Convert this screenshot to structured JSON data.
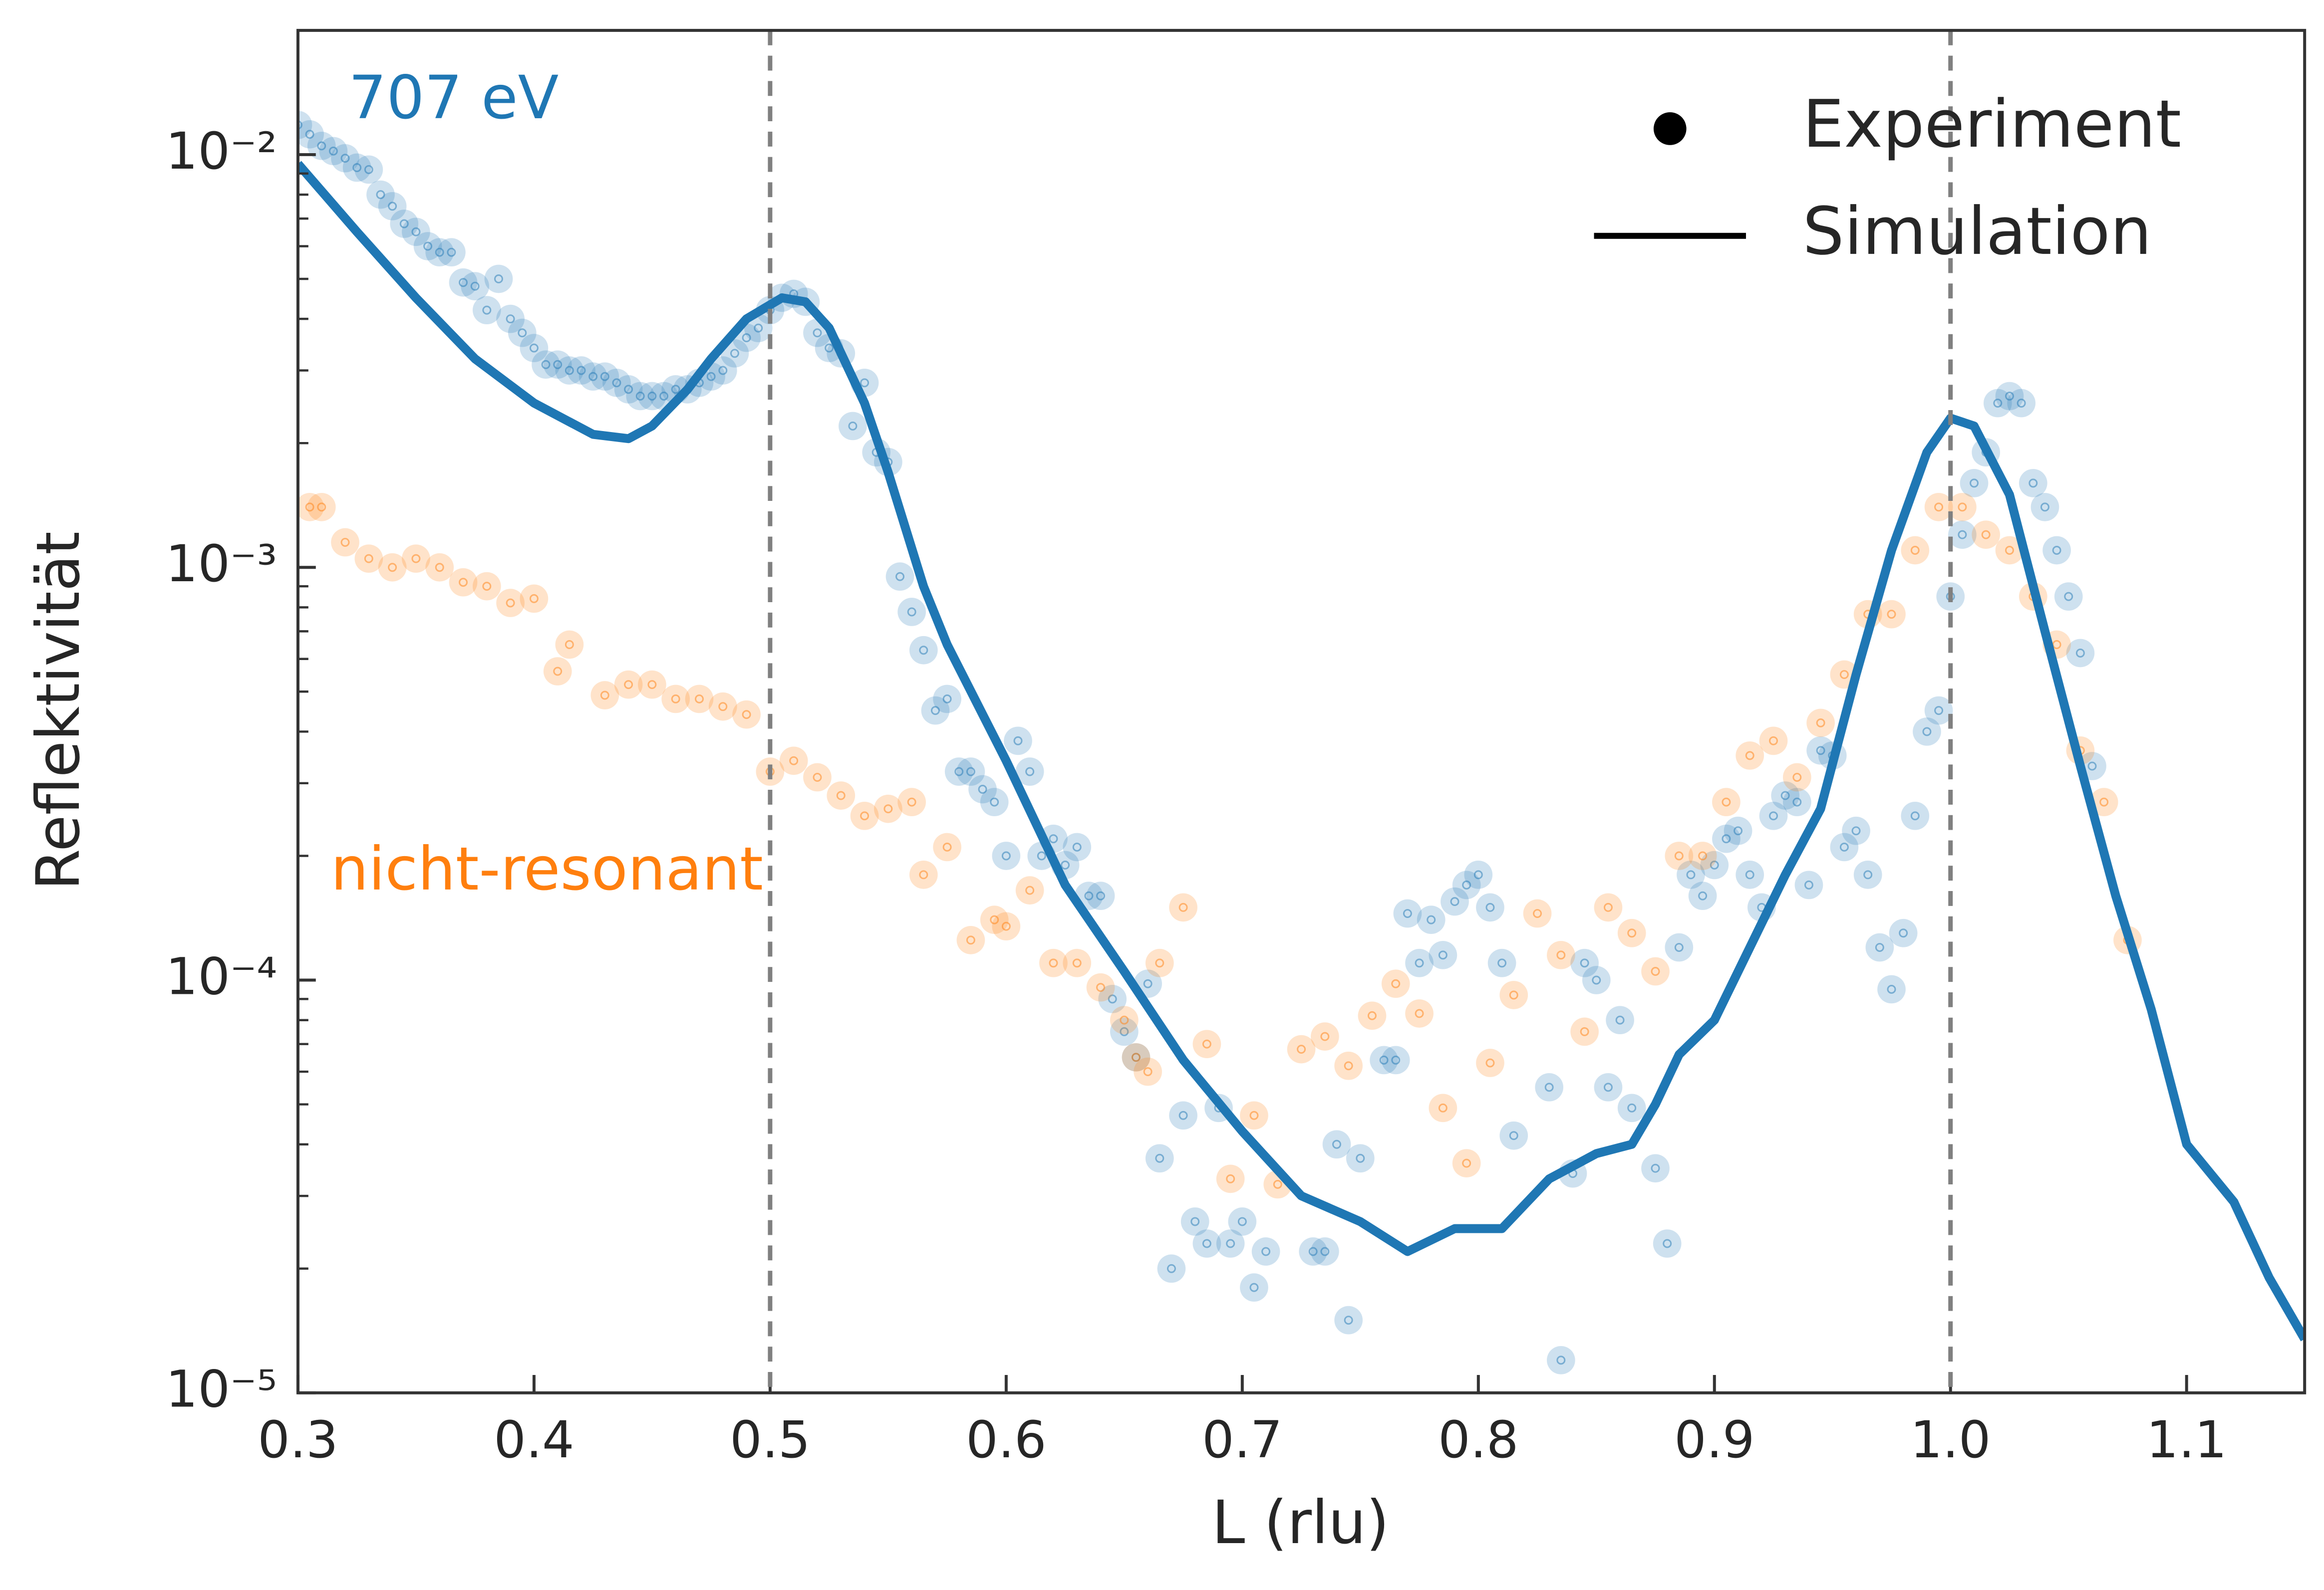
{
  "chart_data": {
    "type": "scatter",
    "x_label": "L (rlu)",
    "y_label": "Reflektivität",
    "xlim": [
      0.3,
      1.15
    ],
    "ylim": [
      1e-05,
      0.02
    ],
    "log_y": true,
    "xticks": [
      0.3,
      0.4,
      0.5,
      0.6,
      0.7,
      0.8,
      0.9,
      {
        "value": 1,
        "label": "1.0"
      },
      1.1
    ],
    "yticks": [
      {
        "value": 1e-05,
        "label": "10⁻⁵"
      },
      {
        "value": 0.0001,
        "label": "10⁻⁴"
      },
      {
        "value": 0.001,
        "label": "10⁻³"
      },
      {
        "value": 0.01,
        "label": "10⁻²"
      }
    ],
    "yminorticks": [
      2e-05,
      3e-05,
      4e-05,
      5e-05,
      6e-05,
      7e-05,
      8e-05,
      9e-05,
      0.0002,
      0.0003,
      0.0004,
      0.0005,
      0.0006,
      0.0007,
      0.0008,
      0.0009,
      0.002,
      0.003,
      0.004,
      0.005,
      0.006,
      0.007,
      0.008,
      0.009,
      0.02
    ],
    "vlines": [
      0.5,
      1.0
    ],
    "annotations": [
      {
        "text": "707 eV",
        "color": "#1f77b4"
      },
      {
        "text": "nicht-resonant",
        "color": "#ff7f0e"
      }
    ],
    "legend": {
      "position": "upper right",
      "entries": [
        {
          "label": "Experiment",
          "marker": "dot"
        },
        {
          "label": "Simulation",
          "marker": "line"
        }
      ]
    },
    "series": [
      {
        "kind": "scatter",
        "color": "#1f77b4",
        "x": [
          0.3,
          0.305,
          0.31,
          0.315,
          0.32,
          0.325,
          0.33,
          0.335,
          0.34,
          0.345,
          0.35,
          0.355,
          0.36,
          0.365,
          0.37,
          0.375,
          0.38,
          0.385,
          0.39,
          0.395,
          0.4,
          0.405,
          0.41,
          0.415,
          0.42,
          0.425,
          0.43,
          0.435,
          0.44,
          0.445,
          0.45,
          0.455,
          0.46,
          0.465,
          0.47,
          0.475,
          0.48,
          0.485,
          0.49,
          0.495,
          0.5,
          0.505,
          0.51,
          0.515,
          0.52,
          0.525,
          0.53,
          0.535,
          0.54,
          0.545,
          0.55,
          0.555,
          0.56,
          0.565,
          0.57,
          0.575,
          0.58,
          0.585,
          0.59,
          0.595,
          0.6,
          0.605,
          0.61,
          0.615,
          0.62,
          0.625,
          0.63,
          0.635,
          0.64,
          0.645,
          0.65,
          0.655,
          0.66,
          0.665,
          0.67,
          0.675,
          0.68,
          0.685,
          0.69,
          0.695,
          0.7,
          0.705,
          0.71,
          0.73,
          0.735,
          0.74,
          0.745,
          0.75,
          0.76,
          0.765,
          0.77,
          0.775,
          0.78,
          0.785,
          0.79,
          0.795,
          0.8,
          0.805,
          0.81,
          0.815,
          0.83,
          0.835,
          0.84,
          0.845,
          0.85,
          0.855,
          0.86,
          0.865,
          0.875,
          0.88,
          0.885,
          0.89,
          0.895,
          0.9,
          0.905,
          0.91,
          0.915,
          0.92,
          0.925,
          0.93,
          0.935,
          0.94,
          0.945,
          0.95,
          0.955,
          0.96,
          0.965,
          0.97,
          0.975,
          0.98,
          0.985,
          0.99,
          0.995,
          1.0,
          1.005,
          1.01,
          1.015,
          1.02,
          1.025,
          1.03,
          1.035,
          1.04,
          1.045,
          1.05,
          1.055,
          1.06
        ],
        "values": [
          0.0118,
          0.0112,
          0.0105,
          0.0102,
          0.0098,
          0.0093,
          0.0092,
          0.008,
          0.0075,
          0.0068,
          0.0065,
          0.006,
          0.0058,
          0.0058,
          0.0049,
          0.0048,
          0.0042,
          0.005,
          0.004,
          0.0037,
          0.0034,
          0.0031,
          0.0031,
          0.003,
          0.003,
          0.0029,
          0.0029,
          0.0028,
          0.0027,
          0.0026,
          0.0026,
          0.0026,
          0.0027,
          0.0027,
          0.0028,
          0.0029,
          0.003,
          0.0033,
          0.0036,
          0.0038,
          0.0042,
          0.0045,
          0.0046,
          0.0044,
          0.0037,
          0.0034,
          0.0033,
          0.0022,
          0.0028,
          0.0019,
          0.0018,
          0.00095,
          0.00078,
          0.00063,
          0.00045,
          0.00048,
          0.00032,
          0.00032,
          0.00029,
          0.00027,
          0.0002,
          0.00038,
          0.00032,
          0.0002,
          0.00022,
          0.00019,
          0.00021,
          0.00016,
          0.00016,
          9e-05,
          7.5e-05,
          6.5e-05,
          9.8e-05,
          3.7e-05,
          2e-05,
          4.7e-05,
          2.6e-05,
          2.3e-05,
          4.9e-05,
          2.3e-05,
          2.6e-05,
          1.8e-05,
          2.2e-05,
          2.2e-05,
          2.2e-05,
          4e-05,
          1.5e-05,
          3.7e-05,
          6.4e-05,
          6.4e-05,
          0.000145,
          0.00011,
          0.00014,
          0.000115,
          0.000155,
          0.00017,
          0.00018,
          0.00015,
          0.00011,
          4.2e-05,
          5.5e-05,
          1.2e-05,
          3.4e-05,
          0.00011,
          0.0001,
          5.5e-05,
          8e-05,
          4.9e-05,
          3.5e-05,
          2.3e-05,
          0.00012,
          0.00018,
          0.00016,
          0.00019,
          0.00022,
          0.00023,
          0.00018,
          0.00015,
          0.00025,
          0.00028,
          0.00027,
          0.00017,
          0.00036,
          0.00035,
          0.00021,
          0.00023,
          0.00018,
          0.00012,
          9.5e-05,
          0.00013,
          0.00025,
          0.0004,
          0.00045,
          0.00085,
          0.0012,
          0.0016,
          0.0019,
          0.0025,
          0.0026,
          0.0025,
          0.0016,
          0.0014,
          0.0011,
          0.00085,
          0.00062,
          0.00033
        ]
      },
      {
        "kind": "scatter",
        "color": "#ff7f0e",
        "x": [
          0.305,
          0.31,
          0.32,
          0.33,
          0.34,
          0.35,
          0.36,
          0.37,
          0.38,
          0.39,
          0.4,
          0.41,
          0.415,
          0.43,
          0.44,
          0.45,
          0.46,
          0.47,
          0.48,
          0.49,
          0.5,
          0.51,
          0.52,
          0.53,
          0.54,
          0.55,
          0.56,
          0.565,
          0.575,
          0.585,
          0.595,
          0.6,
          0.61,
          0.62,
          0.63,
          0.64,
          0.65,
          0.655,
          0.66,
          0.665,
          0.675,
          0.685,
          0.695,
          0.705,
          0.715,
          0.725,
          0.735,
          0.745,
          0.755,
          0.765,
          0.775,
          0.785,
          0.795,
          0.805,
          0.815,
          0.825,
          0.835,
          0.845,
          0.855,
          0.865,
          0.875,
          0.885,
          0.895,
          0.905,
          0.915,
          0.925,
          0.935,
          0.945,
          0.955,
          0.965,
          0.975,
          0.985,
          0.995,
          1.005,
          1.015,
          1.025,
          1.035,
          1.045,
          1.055,
          1.065,
          1.075
        ],
        "values": [
          0.0014,
          0.0014,
          0.00115,
          0.00105,
          0.001,
          0.00105,
          0.001,
          0.00092,
          0.0009,
          0.00082,
          0.00084,
          0.00056,
          0.00065,
          0.00049,
          0.00052,
          0.00052,
          0.00048,
          0.00048,
          0.00046,
          0.00044,
          0.00032,
          0.00034,
          0.00031,
          0.00028,
          0.00025,
          0.00026,
          0.00027,
          0.00018,
          0.00021,
          0.000125,
          0.00014,
          0.000135,
          0.000165,
          0.00011,
          0.00011,
          9.6e-05,
          8e-05,
          6.5e-05,
          6e-05,
          0.00011,
          0.00015,
          7e-05,
          3.3e-05,
          4.7e-05,
          3.2e-05,
          6.8e-05,
          7.3e-05,
          6.2e-05,
          8.2e-05,
          9.8e-05,
          8.3e-05,
          4.9e-05,
          3.6e-05,
          6.3e-05,
          9.2e-05,
          0.000145,
          0.000115,
          7.5e-05,
          0.00015,
          0.00013,
          0.000105,
          0.0002,
          0.0002,
          0.00027,
          0.00035,
          0.00038,
          0.00031,
          0.00042,
          0.00055,
          0.00077,
          0.00077,
          0.0011,
          0.0014,
          0.0014,
          0.0012,
          0.0011,
          0.00085,
          0.00065,
          0.00036,
          0.00027,
          0.000125
        ]
      },
      {
        "kind": "line",
        "color": "#1f77b4",
        "x": [
          0.3,
          0.325,
          0.35,
          0.375,
          0.4,
          0.425,
          0.44,
          0.45,
          0.465,
          0.475,
          0.49,
          0.505,
          0.515,
          0.525,
          0.54,
          0.55,
          0.565,
          0.575,
          0.6,
          0.625,
          0.65,
          0.675,
          0.7,
          0.725,
          0.75,
          0.77,
          0.79,
          0.81,
          0.83,
          0.85,
          0.865,
          0.875,
          0.885,
          0.9,
          0.915,
          0.93,
          0.945,
          0.96,
          0.975,
          0.99,
          1.0,
          1.01,
          1.025,
          1.04,
          1.055,
          1.07,
          1.085,
          1.1,
          1.12,
          1.135,
          1.15
        ],
        "values": [
          0.0095,
          0.0065,
          0.0045,
          0.0032,
          0.0025,
          0.0021,
          0.00205,
          0.0022,
          0.0027,
          0.0032,
          0.004,
          0.0045,
          0.0044,
          0.0038,
          0.0025,
          0.0017,
          0.0009,
          0.00065,
          0.00034,
          0.00017,
          0.000105,
          6.4e-05,
          4.3e-05,
          3e-05,
          2.6e-05,
          2.2e-05,
          2.5e-05,
          2.5e-05,
          3.3e-05,
          3.8e-05,
          4e-05,
          5e-05,
          6.6e-05,
          8e-05,
          0.00012,
          0.00018,
          0.00026,
          0.00055,
          0.0011,
          0.0019,
          0.0023,
          0.0022,
          0.0015,
          0.0007,
          0.00033,
          0.00016,
          8.5e-05,
          4e-05,
          2.9e-05,
          1.9e-05,
          1.35e-05
        ]
      }
    ]
  }
}
